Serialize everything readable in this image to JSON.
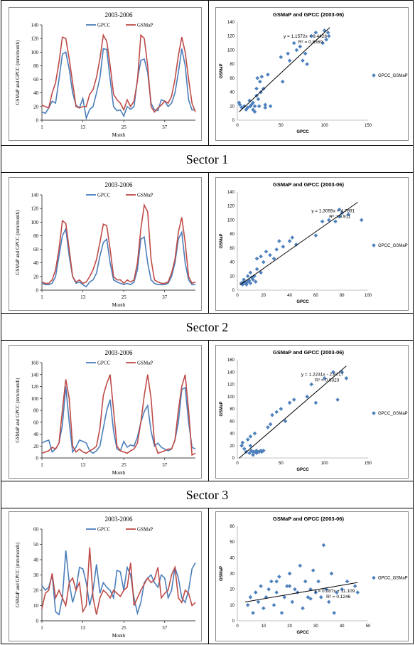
{
  "sectors": [
    "Sector 1",
    "Sector 2",
    "Sector 3"
  ],
  "colors": {
    "gpcc": "#4a7ebb",
    "gsmap": "#be4b48",
    "scatter": "#4f81bd",
    "trend": "#000000"
  },
  "chart_data": [
    {
      "type": "line",
      "title": "2003-2006",
      "xlabel": "Month",
      "ylabel": "GSMaP and GPCC (mm/month)",
      "ylim": [
        0,
        140
      ],
      "yticks": [
        0,
        20,
        40,
        60,
        80,
        100,
        120,
        140
      ],
      "xticks": [
        1,
        13,
        25,
        37
      ],
      "legend": "top-center",
      "series": [
        {
          "name": "GPCC",
          "values": [
            12,
            10,
            18,
            28,
            25,
            60,
            97,
            100,
            75,
            40,
            22,
            18,
            32,
            3,
            16,
            20,
            40,
            62,
            105,
            104,
            60,
            20,
            14,
            15,
            6,
            20,
            16,
            20,
            60,
            88,
            90,
            70,
            25,
            15,
            14,
            30,
            28,
            20,
            25,
            40,
            70,
            105,
            80,
            30,
            15,
            15
          ]
        },
        {
          "name": "GSMaP",
          "values": [
            22,
            20,
            18,
            40,
            55,
            85,
            122,
            120,
            90,
            55,
            20,
            18,
            20,
            20,
            38,
            45,
            63,
            90,
            125,
            116,
            80,
            38,
            30,
            25,
            15,
            30,
            20,
            28,
            58,
            125,
            120,
            80,
            20,
            12,
            18,
            22,
            28,
            25,
            35,
            60,
            95,
            122,
            100,
            60,
            25,
            12
          ]
        }
      ]
    },
    {
      "type": "scatter",
      "title": "GSMaP and GPCC (2003-06)",
      "xlabel": "GPCC",
      "ylabel": "GSMaP",
      "xlim": [
        0,
        150
      ],
      "ylim": [
        0,
        140
      ],
      "xticks": [
        0,
        50,
        100,
        150
      ],
      "yticks": [
        0,
        20,
        40,
        60,
        80,
        100,
        120,
        140
      ],
      "legend": "GPCC_GSMaP",
      "equation": "y = 1.1572x + 9.4428",
      "r2": "R² = 0.8569",
      "trend": {
        "slope": 1.1572,
        "intercept": 9.4428,
        "x0": 2,
        "x1": 106
      },
      "points": [
        [
          2,
          25
        ],
        [
          3,
          22
        ],
        [
          5,
          18
        ],
        [
          8,
          20
        ],
        [
          10,
          15
        ],
        [
          12,
          18
        ],
        [
          14,
          28
        ],
        [
          15,
          20
        ],
        [
          16,
          22
        ],
        [
          18,
          25
        ],
        [
          18,
          15
        ],
        [
          20,
          12
        ],
        [
          20,
          20
        ],
        [
          22,
          35
        ],
        [
          22,
          45
        ],
        [
          23,
          60
        ],
        [
          24,
          30
        ],
        [
          25,
          20
        ],
        [
          26,
          55
        ],
        [
          27,
          40
        ],
        [
          28,
          62
        ],
        [
          30,
          45
        ],
        [
          32,
          22
        ],
        [
          32,
          18
        ],
        [
          35,
          65
        ],
        [
          38,
          20
        ],
        [
          50,
          90
        ],
        [
          52,
          55
        ],
        [
          58,
          95
        ],
        [
          60,
          85
        ],
        [
          65,
          110
        ],
        [
          68,
          100
        ],
        [
          72,
          105
        ],
        [
          75,
          85
        ],
        [
          78,
          95
        ],
        [
          80,
          80
        ],
        [
          85,
          120
        ],
        [
          90,
          125
        ],
        [
          100,
          128
        ],
        [
          102,
          115
        ],
        [
          104,
          125
        ],
        [
          105,
          120
        ],
        [
          98,
          110
        ]
      ]
    },
    {
      "type": "line",
      "title": "2003-2006",
      "xlabel": "Month",
      "ylabel": "GSMaP and GPCC (mm/month)",
      "ylim": [
        0,
        140
      ],
      "yticks": [
        0,
        20,
        40,
        60,
        80,
        100,
        120,
        140
      ],
      "xticks": [
        1,
        13,
        25,
        37
      ],
      "legend": "top-center",
      "series": [
        {
          "name": "GPCC",
          "values": [
            10,
            8,
            8,
            10,
            20,
            50,
            80,
            90,
            50,
            20,
            10,
            12,
            8,
            5,
            12,
            15,
            25,
            50,
            70,
            75,
            40,
            15,
            12,
            10,
            8,
            10,
            8,
            12,
            30,
            75,
            78,
            40,
            15,
            10,
            8,
            8,
            8,
            10,
            20,
            40,
            75,
            85,
            40,
            15,
            8,
            8
          ]
        },
        {
          "name": "GSMaP",
          "values": [
            12,
            10,
            10,
            15,
            30,
            60,
            102,
            98,
            60,
            20,
            12,
            15,
            10,
            12,
            20,
            30,
            45,
            70,
            97,
            95,
            60,
            20,
            15,
            15,
            10,
            15,
            12,
            15,
            40,
            90,
            125,
            115,
            45,
            15,
            12,
            10,
            10,
            12,
            25,
            45,
            85,
            107,
            70,
            20,
            10,
            12
          ]
        }
      ]
    },
    {
      "type": "scatter",
      "title": "GSMaP and GPCC (2003-06)",
      "xlabel": "GPCC",
      "ylabel": "GSMaP",
      "xlim": [
        0,
        100
      ],
      "ylim": [
        0,
        140
      ],
      "xticks": [
        0,
        20,
        40,
        60,
        80,
        100
      ],
      "yticks": [
        0,
        20,
        40,
        60,
        80,
        100,
        120,
        140
      ],
      "legend": "GPCC_GSMaP",
      "equation": "y = 1.3095x + 4.7891",
      "r2": "R² = 0.911",
      "trend": {
        "slope": 1.3095,
        "intercept": 4.7891,
        "x0": 2,
        "x1": 92
      },
      "points": [
        [
          3,
          10
        ],
        [
          4,
          8
        ],
        [
          5,
          12
        ],
        [
          5,
          15
        ],
        [
          6,
          10
        ],
        [
          7,
          8
        ],
        [
          8,
          12
        ],
        [
          8,
          20
        ],
        [
          9,
          14
        ],
        [
          10,
          10
        ],
        [
          10,
          25
        ],
        [
          11,
          18
        ],
        [
          12,
          15
        ],
        [
          13,
          20
        ],
        [
          14,
          12
        ],
        [
          15,
          30
        ],
        [
          15,
          45
        ],
        [
          18,
          25
        ],
        [
          18,
          48
        ],
        [
          20,
          40
        ],
        [
          22,
          55
        ],
        [
          25,
          50
        ],
        [
          28,
          45
        ],
        [
          30,
          58
        ],
        [
          32,
          70
        ],
        [
          35,
          62
        ],
        [
          40,
          70
        ],
        [
          42,
          75
        ],
        [
          45,
          65
        ],
        [
          60,
          78
        ],
        [
          65,
          98
        ],
        [
          70,
          100
        ],
        [
          75,
          98
        ],
        [
          78,
          105
        ],
        [
          80,
          110
        ],
        [
          85,
          108
        ],
        [
          95,
          100
        ],
        [
          78,
          115
        ]
      ]
    },
    {
      "type": "line",
      "title": "2003-2006",
      "xlabel": "Month",
      "ylabel": "GSMaP and GPCC (mm/month)",
      "ylim": [
        0,
        160
      ],
      "yticks": [
        0,
        20,
        40,
        60,
        80,
        100,
        120,
        140,
        160
      ],
      "xticks": [
        1,
        13,
        25,
        37
      ],
      "legend": "top-center",
      "series": [
        {
          "name": "GPCC",
          "values": [
            25,
            28,
            30,
            10,
            15,
            25,
            55,
            120,
            60,
            10,
            18,
            30,
            28,
            25,
            12,
            8,
            12,
            20,
            50,
            80,
            98,
            45,
            15,
            12,
            28,
            18,
            22,
            20,
            35,
            60,
            78,
            88,
            45,
            20,
            25,
            18,
            15,
            12,
            15,
            30,
            60,
            115,
            118,
            60,
            18,
            15
          ]
        },
        {
          "name": "GSMaP",
          "values": [
            8,
            10,
            12,
            18,
            15,
            25,
            80,
            132,
            100,
            20,
            10,
            15,
            10,
            8,
            12,
            15,
            20,
            50,
            105,
            125,
            140,
            80,
            20,
            12,
            10,
            8,
            12,
            15,
            25,
            60,
            105,
            140,
            100,
            25,
            8,
            10,
            12,
            15,
            15,
            30,
            80,
            120,
            140,
            80,
            5,
            8
          ]
        }
      ]
    },
    {
      "type": "scatter",
      "title": "GSMaP and GPCC (2003-06)",
      "xlabel": "GPCC",
      "ylabel": "GSMaP",
      "xlim": [
        0,
        150
      ],
      "ylim": [
        0,
        160
      ],
      "xticks": [
        0,
        50,
        100,
        150
      ],
      "yticks": [
        0,
        20,
        40,
        60,
        80,
        100,
        120,
        140,
        160
      ],
      "legend": "GPCC_GSMaP",
      "equation": "y = 1.2231x - 2.8717",
      "r2": "R² = 0.8323",
      "trend": {
        "slope": 1.2231,
        "intercept": -2.8717,
        "x0": 2,
        "x1": 125
      },
      "points": [
        [
          5,
          20
        ],
        [
          6,
          25
        ],
        [
          8,
          15
        ],
        [
          10,
          10
        ],
        [
          12,
          30
        ],
        [
          14,
          8
        ],
        [
          15,
          20
        ],
        [
          16,
          12
        ],
        [
          18,
          10
        ],
        [
          20,
          10
        ],
        [
          22,
          12
        ],
        [
          25,
          10
        ],
        [
          27,
          12
        ],
        [
          28,
          10
        ],
        [
          30,
          12
        ],
        [
          15,
          35
        ],
        [
          20,
          40
        ],
        [
          35,
          50
        ],
        [
          38,
          55
        ],
        [
          40,
          70
        ],
        [
          45,
          75
        ],
        [
          50,
          80
        ],
        [
          55,
          60
        ],
        [
          60,
          90
        ],
        [
          65,
          95
        ],
        [
          80,
          100
        ],
        [
          85,
          120
        ],
        [
          90,
          90
        ],
        [
          100,
          130
        ],
        [
          110,
          140
        ],
        [
          115,
          95
        ],
        [
          120,
          140
        ],
        [
          125,
          130
        ],
        [
          18,
          5
        ],
        [
          22,
          8
        ]
      ]
    },
    {
      "type": "line",
      "title": "2003-2006",
      "xlabel": "Month",
      "ylabel": "GSMaP and GPCC (mm/month)",
      "ylim": [
        0,
        60
      ],
      "yticks": [
        0,
        10,
        20,
        30,
        40,
        50,
        60
      ],
      "xticks": [
        1,
        13,
        25,
        37
      ],
      "legend": "top-center",
      "series": [
        {
          "name": "GPCC",
          "values": [
            23,
            20,
            22,
            30,
            6,
            4,
            15,
            46,
            25,
            12,
            20,
            35,
            34,
            25,
            10,
            20,
            37,
            18,
            25,
            22,
            20,
            15,
            33,
            32,
            20,
            35,
            30,
            15,
            5,
            12,
            25,
            28,
            30,
            25,
            22,
            30,
            28,
            15,
            20,
            35,
            28,
            15,
            12,
            20,
            34,
            38
          ]
        },
        {
          "name": "GSMaP",
          "values": [
            8,
            18,
            20,
            31,
            15,
            20,
            15,
            10,
            25,
            28,
            20,
            25,
            6,
            10,
            48,
            15,
            4,
            15,
            20,
            18,
            15,
            20,
            18,
            16,
            20,
            22,
            38,
            10,
            15,
            20,
            24,
            28,
            25,
            27,
            35,
            15,
            18,
            20,
            30,
            35,
            15,
            12,
            20,
            18,
            10,
            12
          ]
        }
      ]
    },
    {
      "type": "scatter",
      "title": "GSMaP and GPCC (2003-06)",
      "xlabel": "GPCC",
      "ylabel": "GSMaP",
      "xlim": [
        0,
        50
      ],
      "ylim": [
        0,
        60
      ],
      "xticks": [
        0,
        10,
        20,
        30,
        40,
        50
      ],
      "yticks": [
        0,
        10,
        20,
        30,
        40,
        50,
        60
      ],
      "legend": "GPCC_GSMaP",
      "equation": "y = 0.287x + 11.109",
      "r2": "R² = 0.1246",
      "trend": {
        "slope": 0.287,
        "intercept": 11.109,
        "x0": 3,
        "x1": 46
      },
      "points": [
        [
          4,
          10
        ],
        [
          5,
          15
        ],
        [
          6,
          5
        ],
        [
          7,
          18
        ],
        [
          8,
          12
        ],
        [
          9,
          22
        ],
        [
          10,
          8
        ],
        [
          11,
          15
        ],
        [
          12,
          20
        ],
        [
          13,
          25
        ],
        [
          14,
          10
        ],
        [
          15,
          18
        ],
        [
          16,
          28
        ],
        [
          17,
          5
        ],
        [
          18,
          15
        ],
        [
          19,
          22
        ],
        [
          20,
          30
        ],
        [
          21,
          12
        ],
        [
          22,
          20
        ],
        [
          23,
          18
        ],
        [
          24,
          35
        ],
        [
          25,
          8
        ],
        [
          26,
          25
        ],
        [
          27,
          15
        ],
        [
          28,
          20
        ],
        [
          29,
          32
        ],
        [
          30,
          18
        ],
        [
          31,
          25
        ],
        [
          32,
          15
        ],
        [
          33,
          48
        ],
        [
          34,
          20
        ],
        [
          35,
          12
        ],
        [
          36,
          30
        ],
        [
          37,
          5
        ],
        [
          38,
          18
        ],
        [
          40,
          20
        ],
        [
          42,
          25
        ],
        [
          45,
          22
        ],
        [
          46,
          18
        ],
        [
          20,
          22
        ],
        [
          15,
          25
        ],
        [
          28,
          14
        ]
      ]
    }
  ]
}
